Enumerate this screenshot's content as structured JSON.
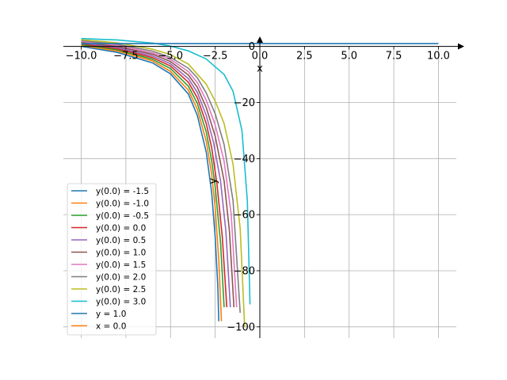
{
  "chart_data": {
    "type": "line",
    "title": "",
    "xlabel": "x",
    "ylabel": "y",
    "xlim": [
      -11.0,
      11.0
    ],
    "ylim": [
      -104,
      3
    ],
    "grid": true,
    "legend_position": "lower-left",
    "x_ticks": [
      -10.0,
      -7.5,
      -5.0,
      -2.5,
      0.0,
      2.5,
      5.0,
      7.5,
      10.0
    ],
    "x_tick_labels": [
      "−10.0",
      "−7.5",
      "−5.0",
      "−2.5",
      "0.0",
      "2.5",
      "5.0",
      "7.5",
      "10.0"
    ],
    "y_ticks": [
      0,
      -20,
      -40,
      -60,
      -80,
      -100
    ],
    "y_tick_labels": [
      "0",
      "−20",
      "−40",
      "−60",
      "−80",
      "−100"
    ],
    "series": [
      {
        "name": "y(0.0) = -1.5",
        "color": "#1f77b4",
        "points": [
          [
            -10.0,
            0.0
          ],
          [
            -8.0,
            -2.1
          ],
          [
            -6.0,
            -5.9
          ],
          [
            -5.0,
            -9.8
          ],
          [
            -4.0,
            -17.0
          ],
          [
            -3.5,
            -24.6
          ],
          [
            -3.0,
            -37.7
          ],
          [
            -2.7,
            -52.0
          ],
          [
            -2.5,
            -68.0
          ],
          [
            -2.35,
            -86.0
          ],
          [
            -2.3,
            -98.0
          ]
        ]
      },
      {
        "name": "y(0.0) = -1.0",
        "color": "#ff7f0e",
        "points": [
          [
            -10.0,
            0.4
          ],
          [
            -8.0,
            -1.6
          ],
          [
            -6.0,
            -5.2
          ],
          [
            -5.0,
            -8.9
          ],
          [
            -4.0,
            -15.6
          ],
          [
            -3.5,
            -22.4
          ],
          [
            -3.0,
            -33.8
          ],
          [
            -2.7,
            -45.5
          ],
          [
            -2.5,
            -57.5
          ],
          [
            -2.3,
            -76.0
          ],
          [
            -2.15,
            -98.0
          ]
        ]
      },
      {
        "name": "y(0.0) = -0.5",
        "color": "#2ca02c",
        "points": [
          [
            -10.0,
            0.7
          ],
          [
            -8.0,
            -1.2
          ],
          [
            -6.0,
            -4.6
          ],
          [
            -5.0,
            -7.9
          ],
          [
            -4.0,
            -14.2
          ],
          [
            -3.5,
            -20.3
          ],
          [
            -3.0,
            -30.5
          ],
          [
            -2.7,
            -40.6
          ],
          [
            -2.5,
            -50.0
          ],
          [
            -2.2,
            -70.0
          ],
          [
            -2.0,
            -93.0
          ]
        ]
      },
      {
        "name": "y(0.0) = 0.0",
        "color": "#d62728",
        "points": [
          [
            -10.0,
            1.0
          ],
          [
            -8.0,
            -0.8
          ],
          [
            -6.0,
            -4.0
          ],
          [
            -5.0,
            -7.0
          ],
          [
            -4.0,
            -12.8
          ],
          [
            -3.5,
            -18.3
          ],
          [
            -3.0,
            -27.5
          ],
          [
            -2.7,
            -36.0
          ],
          [
            -2.4,
            -49.0
          ],
          [
            -2.1,
            -68.0
          ],
          [
            -1.85,
            -93.0
          ]
        ]
      },
      {
        "name": "y(0.0) = 0.5",
        "color": "#9467bd",
        "points": [
          [
            -10.0,
            1.3
          ],
          [
            -8.0,
            -0.4
          ],
          [
            -6.0,
            -3.4
          ],
          [
            -5.0,
            -6.2
          ],
          [
            -4.0,
            -11.5
          ],
          [
            -3.5,
            -16.4
          ],
          [
            -3.0,
            -24.6
          ],
          [
            -2.6,
            -34.0
          ],
          [
            -2.2,
            -48.0
          ],
          [
            -1.9,
            -66.0
          ],
          [
            -1.65,
            -93.0
          ]
        ]
      },
      {
        "name": "y(0.0) = 1.0",
        "color": "#8c564b",
        "points": [
          [
            -10.0,
            1.6
          ],
          [
            -8.0,
            0.0
          ],
          [
            -6.0,
            -2.8
          ],
          [
            -5.0,
            -5.4
          ],
          [
            -4.0,
            -10.2
          ],
          [
            -3.5,
            -14.6
          ],
          [
            -3.0,
            -21.8
          ],
          [
            -2.5,
            -32.0
          ],
          [
            -2.0,
            -48.0
          ],
          [
            -1.7,
            -66.0
          ],
          [
            -1.45,
            -93.0
          ]
        ]
      },
      {
        "name": "y(0.0) = 1.5",
        "color": "#e377c2",
        "points": [
          [
            -10.0,
            1.8
          ],
          [
            -8.0,
            0.4
          ],
          [
            -6.0,
            -2.3
          ],
          [
            -5.0,
            -4.6
          ],
          [
            -4.0,
            -9.0
          ],
          [
            -3.5,
            -12.9
          ],
          [
            -3.0,
            -19.2
          ],
          [
            -2.5,
            -28.0
          ],
          [
            -2.0,
            -41.0
          ],
          [
            -1.6,
            -60.0
          ],
          [
            -1.3,
            -93.0
          ]
        ]
      },
      {
        "name": "y(0.0) = 2.0",
        "color": "#7f7f7f",
        "points": [
          [
            -10.0,
            2.1
          ],
          [
            -8.0,
            0.8
          ],
          [
            -6.0,
            -1.7
          ],
          [
            -5.0,
            -3.9
          ],
          [
            -4.0,
            -7.8
          ],
          [
            -3.5,
            -11.2
          ],
          [
            -3.0,
            -16.6
          ],
          [
            -2.5,
            -24.0
          ],
          [
            -2.0,
            -35.0
          ],
          [
            -1.5,
            -55.0
          ],
          [
            -1.1,
            -95.0
          ]
        ]
      },
      {
        "name": "y(0.0) = 2.5",
        "color": "#bcbd22",
        "points": [
          [
            -10.0,
            2.4
          ],
          [
            -8.0,
            1.3
          ],
          [
            -6.0,
            -1.0
          ],
          [
            -5.0,
            -2.9
          ],
          [
            -4.0,
            -6.3
          ],
          [
            -3.0,
            -13.5
          ],
          [
            -2.5,
            -19.5
          ],
          [
            -2.0,
            -27.5
          ],
          [
            -1.5,
            -42.0
          ],
          [
            -1.1,
            -65.0
          ],
          [
            -0.85,
            -100.0
          ]
        ]
      },
      {
        "name": "y(0.0) = 3.0",
        "color": "#17becf",
        "points": [
          [
            -10.0,
            2.8
          ],
          [
            -8.0,
            2.3
          ],
          [
            -6.0,
            1.2
          ],
          [
            -5.0,
            0.1
          ],
          [
            -4.0,
            -1.6
          ],
          [
            -3.0,
            -4.5
          ],
          [
            -2.0,
            -10.0
          ],
          [
            -1.5,
            -16.0
          ],
          [
            -1.0,
            -30.0
          ],
          [
            -0.7,
            -55.0
          ],
          [
            -0.55,
            -92.0
          ]
        ]
      },
      {
        "name": "y = 1.0",
        "color": "#1f77b4",
        "points": [
          [
            -10.0,
            1.0
          ],
          [
            10.0,
            1.0
          ]
        ]
      },
      {
        "name": "x = 0.0",
        "color": "#ff7f0e",
        "points": [
          [
            0.0,
            0.0
          ],
          [
            0.0,
            0.0
          ]
        ]
      }
    ]
  }
}
